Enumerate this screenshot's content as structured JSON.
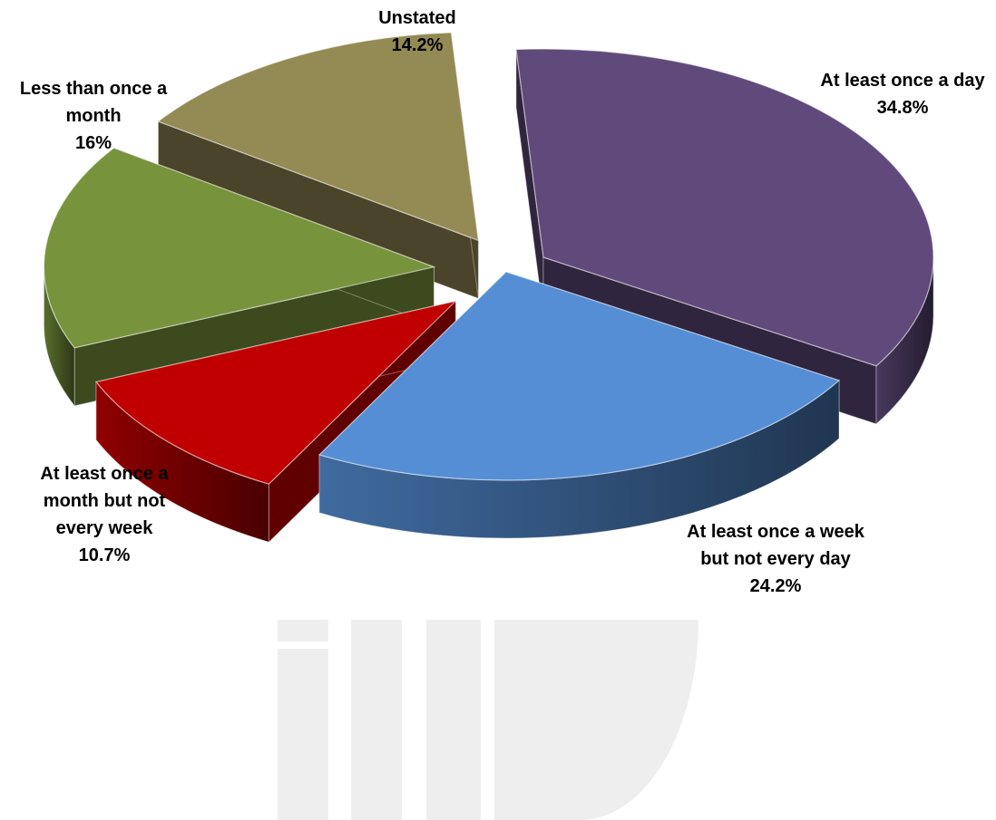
{
  "chart_data": {
    "type": "pie",
    "title": "",
    "slices": [
      {
        "label": "At least once a day",
        "value": 34.8,
        "value_label": "34.8%",
        "color": "#604a7b"
      },
      {
        "label": "At least once a week but not every day",
        "value": 24.2,
        "value_label": "24.2%",
        "color": "#558ed5"
      },
      {
        "label": "At least once a month but not every week",
        "value": 10.7,
        "value_label": "10.7%",
        "color": "#c00000"
      },
      {
        "label": "Less than once a month",
        "value": 16,
        "value_label": "16%",
        "color": "#77933c"
      },
      {
        "label": "Unstated",
        "value": 14.2,
        "value_label": "14.2%",
        "color": "#948a54"
      }
    ],
    "exploded": true,
    "style": "3d",
    "legend": "none"
  },
  "watermark": {
    "text": "ilD",
    "color": "#eeeeee"
  }
}
